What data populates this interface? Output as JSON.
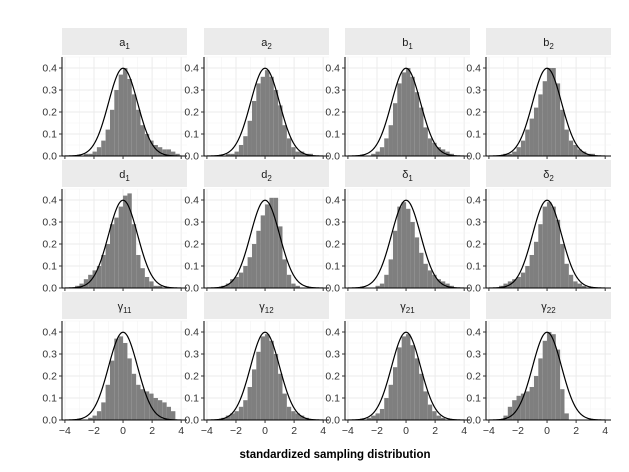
{
  "chart_data": {
    "type": "histogram-facets",
    "xlabel": "standardized sampling distribution",
    "ylabel": "",
    "xlim": [
      -4.2,
      4.4
    ],
    "ylim": [
      0,
      0.45
    ],
    "x_ticks": [
      -4,
      -2,
      0,
      2,
      4
    ],
    "x_tick_labels": [
      "−4",
      "−2",
      "0",
      "2",
      "4"
    ],
    "y_ticks": [
      0.0,
      0.1,
      0.2,
      0.3,
      0.4
    ],
    "y_tick_labels": [
      "0.0",
      "0.1",
      "0.2",
      "0.3",
      "0.4"
    ],
    "grid": true,
    "overlay": "standard normal density",
    "bin_width": 0.3,
    "bin_start": -4.2,
    "panels": [
      {
        "label": "a",
        "sub": "1",
        "counts": [
          0,
          0,
          0,
          0,
          0,
          0.01,
          0.01,
          0.02,
          0.04,
          0.07,
          0.12,
          0.21,
          0.3,
          0.37,
          0.4,
          0.35,
          0.28,
          0.21,
          0.14,
          0.1,
          0.07,
          0.05,
          0.04,
          0.03,
          0.03,
          0.02,
          0.01,
          0,
          0
        ]
      },
      {
        "label": "a",
        "sub": "2",
        "counts": [
          0,
          0,
          0,
          0,
          0,
          0.01,
          0.01,
          0.02,
          0.05,
          0.09,
          0.16,
          0.25,
          0.33,
          0.36,
          0.39,
          0.36,
          0.3,
          0.23,
          0.14,
          0.08,
          0.04,
          0.02,
          0.02,
          0.01,
          0.01,
          0,
          0,
          0,
          0
        ]
      },
      {
        "label": "b",
        "sub": "1",
        "counts": [
          0,
          0,
          0,
          0,
          0,
          0,
          0.01,
          0.02,
          0.04,
          0.08,
          0.14,
          0.24,
          0.33,
          0.38,
          0.4,
          0.36,
          0.29,
          0.22,
          0.13,
          0.08,
          0.06,
          0.04,
          0.03,
          0.02,
          0.01,
          0,
          0,
          0,
          0
        ]
      },
      {
        "label": "b",
        "sub": "2",
        "counts": [
          0,
          0,
          0,
          0,
          0.01,
          0.01,
          0.02,
          0.04,
          0.07,
          0.12,
          0.17,
          0.22,
          0.28,
          0.34,
          0.4,
          0.4,
          0.33,
          0.21,
          0.12,
          0.07,
          0.05,
          0.03,
          0.02,
          0.01,
          0.01,
          0,
          0,
          0,
          0
        ]
      },
      {
        "label": "d",
        "sub": "1",
        "counts": [
          0,
          0,
          0,
          0.01,
          0.02,
          0.04,
          0.06,
          0.08,
          0.1,
          0.15,
          0.2,
          0.29,
          0.32,
          0.37,
          0.42,
          0.43,
          0.29,
          0.15,
          0.09,
          0.05,
          0.03,
          0.01,
          0.01,
          0,
          0,
          0,
          0,
          0,
          0
        ]
      },
      {
        "label": "d",
        "sub": "2",
        "counts": [
          0,
          0,
          0,
          0,
          0.01,
          0.02,
          0.04,
          0.05,
          0.07,
          0.1,
          0.14,
          0.2,
          0.26,
          0.33,
          0.38,
          0.41,
          0.41,
          0.28,
          0.13,
          0.06,
          0.02,
          0.01,
          0,
          0,
          0,
          0,
          0,
          0,
          0
        ]
      },
      {
        "label": "δ",
        "sub": "1",
        "counts": [
          0,
          0,
          0,
          0,
          0,
          0,
          0,
          0.01,
          0.02,
          0.06,
          0.13,
          0.26,
          0.37,
          0.39,
          0.36,
          0.3,
          0.23,
          0.16,
          0.11,
          0.08,
          0.06,
          0.04,
          0.03,
          0.02,
          0.01,
          0,
          0,
          0,
          0
        ]
      },
      {
        "label": "δ",
        "sub": "2",
        "counts": [
          0,
          0,
          0,
          0.01,
          0.02,
          0.03,
          0.04,
          0.05,
          0.07,
          0.1,
          0.15,
          0.21,
          0.29,
          0.37,
          0.39,
          0.37,
          0.31,
          0.2,
          0.11,
          0.06,
          0.03,
          0.02,
          0.01,
          0,
          0,
          0,
          0,
          0,
          0
        ]
      },
      {
        "label": "γ",
        "sub": "11",
        "counts": [
          0,
          0,
          0,
          0,
          0,
          0,
          0.01,
          0.02,
          0.04,
          0.08,
          0.16,
          0.27,
          0.37,
          0.38,
          0.35,
          0.28,
          0.21,
          0.16,
          0.14,
          0.13,
          0.12,
          0.1,
          0.09,
          0.08,
          0.06,
          0.04,
          0,
          0,
          0
        ]
      },
      {
        "label": "γ",
        "sub": "12",
        "counts": [
          0,
          0,
          0,
          0,
          0.01,
          0.02,
          0.03,
          0.04,
          0.06,
          0.09,
          0.15,
          0.23,
          0.31,
          0.38,
          0.39,
          0.36,
          0.3,
          0.21,
          0.12,
          0.06,
          0.04,
          0.03,
          0.02,
          0.01,
          0,
          0,
          0,
          0,
          0
        ]
      },
      {
        "label": "γ",
        "sub": "21",
        "counts": [
          0,
          0,
          0,
          0,
          0,
          0.01,
          0.02,
          0.03,
          0.05,
          0.1,
          0.16,
          0.24,
          0.33,
          0.38,
          0.39,
          0.34,
          0.28,
          0.21,
          0.13,
          0.07,
          0.04,
          0.02,
          0.01,
          0,
          0,
          0,
          0,
          0,
          0
        ]
      },
      {
        "label": "γ",
        "sub": "22",
        "counts": [
          0,
          0,
          0,
          0,
          0.02,
          0.06,
          0.09,
          0.11,
          0.12,
          0.13,
          0.15,
          0.2,
          0.28,
          0.36,
          0.4,
          0.39,
          0.32,
          0.14,
          0.03,
          0,
          0,
          0,
          0,
          0,
          0,
          0,
          0,
          0,
          0
        ]
      }
    ]
  }
}
